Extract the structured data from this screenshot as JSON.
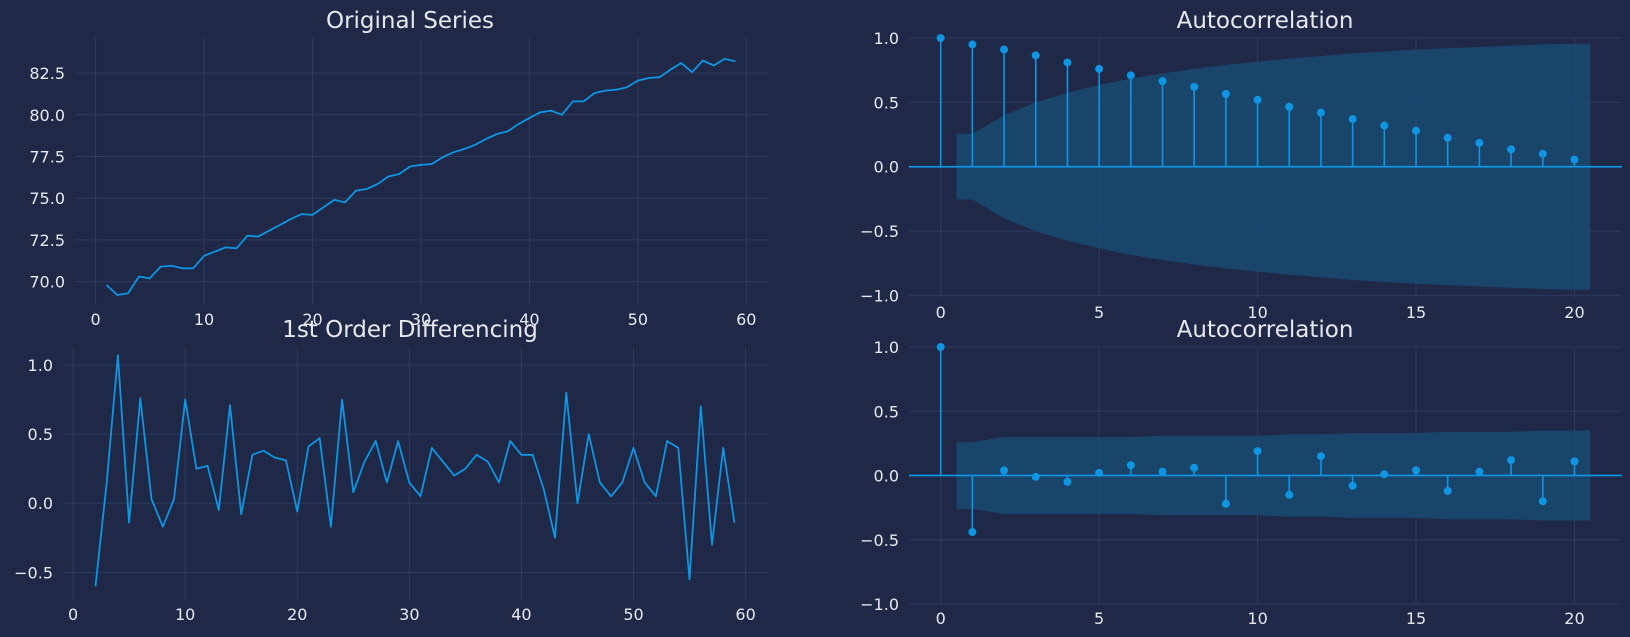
{
  "figure": {
    "background": "#1f2847",
    "line_color": "#0f95e2",
    "ci_color": "#1a4a72",
    "grid_color": "#2e3a5e"
  },
  "chart_data": [
    {
      "id": "original",
      "type": "line",
      "title": "Original Series",
      "x": [
        1,
        2,
        3,
        4,
        5,
        6,
        7,
        8,
        9,
        10,
        11,
        12,
        13,
        14,
        15,
        16,
        17,
        18,
        19,
        20,
        21,
        22,
        23,
        24,
        25,
        26,
        27,
        28,
        29,
        30,
        31,
        32,
        33,
        34,
        35,
        36,
        37,
        38,
        39,
        40,
        41,
        42,
        43,
        44,
        45,
        46,
        47,
        48,
        49,
        50,
        51,
        52,
        53,
        54,
        55,
        56,
        57,
        58,
        59
      ],
      "y": [
        69.8,
        69.2,
        69.3,
        70.3,
        70.2,
        70.9,
        70.95,
        70.8,
        70.8,
        71.55,
        71.8,
        72.05,
        72.0,
        72.75,
        72.7,
        73.05,
        73.4,
        73.75,
        74.05,
        74.0,
        74.45,
        74.9,
        74.75,
        75.45,
        75.55,
        75.85,
        76.3,
        76.45,
        76.9,
        77.0,
        77.05,
        77.45,
        77.75,
        77.95,
        78.2,
        78.55,
        78.85,
        79.0,
        79.45,
        79.8,
        80.15,
        80.25,
        80.0,
        80.8,
        80.8,
        81.3,
        81.45,
        81.5,
        81.65,
        82.05,
        82.2,
        82.25,
        82.7,
        83.1,
        82.55,
        83.25,
        82.95,
        83.35,
        83.2
      ],
      "xlim": [
        -1.9,
        62
      ],
      "ylim": [
        68.6,
        84.6
      ],
      "xticks": [
        0,
        10,
        20,
        30,
        40,
        50,
        60
      ],
      "xtick_labels": [
        "0",
        "10",
        "20",
        "30",
        "40",
        "50",
        "60"
      ],
      "yticks": [
        70.0,
        72.5,
        75.0,
        77.5,
        80.0,
        82.5
      ],
      "ytick_labels": [
        "70.0",
        "72.5",
        "75.0",
        "77.5",
        "80.0",
        "82.5"
      ],
      "grid": true
    },
    {
      "id": "acf-original",
      "type": "stem",
      "title": "Autocorrelation",
      "x": [
        0,
        1,
        2,
        3,
        4,
        5,
        6,
        7,
        8,
        9,
        10,
        11,
        12,
        13,
        14,
        15,
        16,
        17,
        18,
        19,
        20
      ],
      "y": [
        1.0,
        0.95,
        0.91,
        0.865,
        0.81,
        0.76,
        0.71,
        0.665,
        0.62,
        0.565,
        0.52,
        0.465,
        0.42,
        0.37,
        0.32,
        0.28,
        0.225,
        0.185,
        0.135,
        0.1,
        0.055
      ],
      "confidence_band": {
        "lags": [
          0.5,
          1,
          2,
          3,
          4,
          5,
          6,
          7,
          8,
          9,
          10,
          11,
          12,
          13,
          14,
          15,
          16,
          17,
          18,
          19,
          20,
          20.5
        ],
        "upper": [
          0.255,
          0.255,
          0.4,
          0.5,
          0.575,
          0.635,
          0.685,
          0.725,
          0.76,
          0.79,
          0.815,
          0.84,
          0.86,
          0.88,
          0.895,
          0.91,
          0.92,
          0.93,
          0.94,
          0.95,
          0.955,
          0.955
        ]
      },
      "xlim": [
        -1.0,
        21.5
      ],
      "ylim": [
        -1.02,
        1.0
      ],
      "xticks": [
        0,
        5,
        10,
        15,
        20
      ],
      "xtick_labels": [
        "0",
        "5",
        "10",
        "15",
        "20"
      ],
      "yticks": [
        -1.0,
        -0.5,
        0.0,
        0.5,
        1.0
      ],
      "ytick_labels": [
        "−1.0",
        "−0.5",
        "0.0",
        "0.5",
        "1.0"
      ],
      "grid": true
    },
    {
      "id": "differenced",
      "type": "line",
      "title": "1st Order Differencing",
      "x": [
        2,
        3,
        4,
        5,
        6,
        7,
        8,
        9,
        10,
        11,
        12,
        13,
        14,
        15,
        16,
        17,
        18,
        19,
        20,
        21,
        22,
        23,
        24,
        25,
        26,
        27,
        28,
        29,
        30,
        31,
        32,
        33,
        34,
        35,
        36,
        37,
        38,
        39,
        40,
        41,
        42,
        43,
        44,
        45,
        46,
        47,
        48,
        49,
        50,
        51,
        52,
        53,
        54,
        55,
        56,
        57,
        58,
        59
      ],
      "y": [
        -0.6,
        0.15,
        1.07,
        -0.14,
        0.76,
        0.03,
        -0.17,
        0.03,
        0.75,
        0.25,
        0.27,
        -0.05,
        0.71,
        -0.08,
        0.35,
        0.38,
        0.33,
        0.31,
        -0.06,
        0.41,
        0.47,
        -0.17,
        0.75,
        0.08,
        0.3,
        0.45,
        0.15,
        0.45,
        0.15,
        0.05,
        0.4,
        0.3,
        0.2,
        0.25,
        0.35,
        0.3,
        0.15,
        0.45,
        0.35,
        0.35,
        0.1,
        -0.25,
        0.8,
        0.0,
        0.5,
        0.15,
        0.05,
        0.15,
        0.4,
        0.15,
        0.05,
        0.45,
        0.4,
        -0.55,
        0.7,
        -0.3,
        0.4,
        -0.14
      ],
      "xlim": [
        -0.9,
        62
      ],
      "ylim": [
        -0.7,
        1.13
      ],
      "xticks": [
        0,
        10,
        20,
        30,
        40,
        50,
        60
      ],
      "xtick_labels": [
        "0",
        "10",
        "20",
        "30",
        "40",
        "50",
        "60"
      ],
      "yticks": [
        -0.5,
        0.0,
        0.5,
        1.0
      ],
      "ytick_labels": [
        "−0.5",
        "0.0",
        "0.5",
        "1.0"
      ],
      "grid": true
    },
    {
      "id": "acf-differenced",
      "type": "stem",
      "title": "Autocorrelation",
      "x": [
        0,
        1,
        2,
        3,
        4,
        5,
        6,
        7,
        8,
        9,
        10,
        11,
        12,
        13,
        14,
        15,
        16,
        17,
        18,
        19,
        20
      ],
      "y": [
        1.0,
        -0.44,
        0.04,
        -0.01,
        -0.05,
        0.02,
        0.08,
        0.03,
        0.06,
        -0.22,
        0.19,
        -0.15,
        0.15,
        -0.08,
        0.01,
        0.04,
        -0.12,
        0.03,
        0.12,
        -0.2,
        0.11
      ],
      "confidence_band": {
        "lags": [
          0.5,
          1,
          2,
          3,
          4,
          5,
          6,
          7,
          8,
          9,
          10,
          11,
          12,
          13,
          14,
          15,
          16,
          17,
          18,
          19,
          20,
          20.5
        ],
        "upper": [
          0.26,
          0.26,
          0.3,
          0.3,
          0.3,
          0.3,
          0.3,
          0.31,
          0.31,
          0.31,
          0.31,
          0.32,
          0.32,
          0.33,
          0.33,
          0.33,
          0.34,
          0.34,
          0.34,
          0.35,
          0.35,
          0.35
        ]
      },
      "xlim": [
        -1.0,
        21.5
      ],
      "ylim": [
        -1.0,
        1.0
      ],
      "xticks": [
        0,
        5,
        10,
        15,
        20
      ],
      "xtick_labels": [
        "0",
        "5",
        "10",
        "15",
        "20"
      ],
      "yticks": [
        -1.0,
        -0.5,
        0.0,
        0.5,
        1.0
      ],
      "ytick_labels": [
        "−1.0",
        "−0.5",
        "0.0",
        "0.5",
        "1.0"
      ],
      "grid": true
    }
  ]
}
